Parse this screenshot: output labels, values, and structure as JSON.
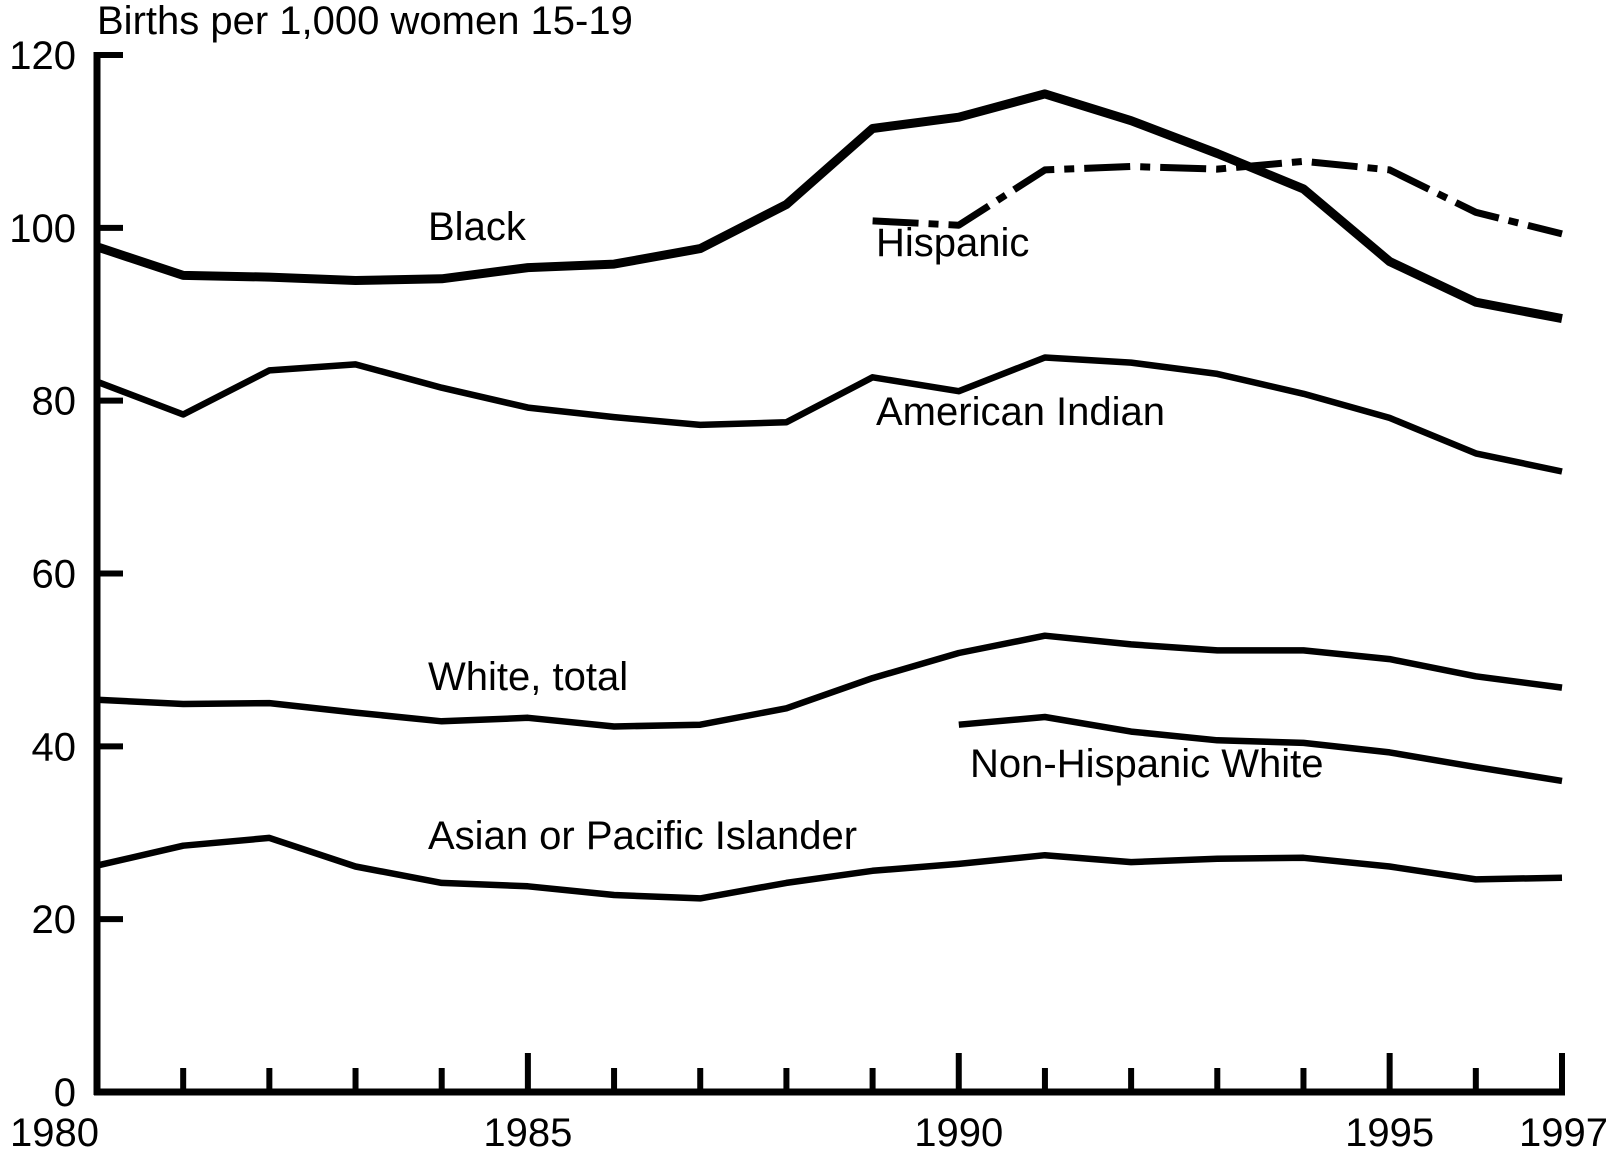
{
  "chart_data": {
    "type": "line",
    "ylabel": "Births per 1,000 women 15-19",
    "xlabel": "",
    "xlim": [
      1980,
      1997
    ],
    "ylim": [
      0,
      120
    ],
    "x_tick_labels": [
      "1980",
      "1985",
      "1990",
      "1995",
      "1997"
    ],
    "y_tick_labels": [
      "0",
      "20",
      "40",
      "60",
      "80",
      "100",
      "120"
    ],
    "grid": false,
    "legend": "none (series labeled inline)",
    "series": [
      {
        "name": "Black",
        "style": "solid-thick",
        "x": [
          1980,
          1981,
          1982,
          1983,
          1984,
          1985,
          1986,
          1987,
          1988,
          1989,
          1990,
          1991,
          1992,
          1993,
          1994,
          1995,
          1996,
          1997
        ],
        "values": [
          97.8,
          94.5,
          94.3,
          93.9,
          94.1,
          95.4,
          95.8,
          97.6,
          102.7,
          111.5,
          112.8,
          115.5,
          112.4,
          108.6,
          104.5,
          96.1,
          91.4,
          89.5
        ]
      },
      {
        "name": "Hispanic",
        "style": "dashed",
        "x": [
          1989,
          1990,
          1991,
          1992,
          1993,
          1994,
          1995,
          1996,
          1997
        ],
        "values": [
          100.8,
          100.3,
          106.7,
          107.1,
          106.8,
          107.7,
          106.7,
          101.8,
          99.3
        ]
      },
      {
        "name": "American Indian",
        "style": "solid",
        "x": [
          1980,
          1981,
          1982,
          1983,
          1984,
          1985,
          1986,
          1987,
          1988,
          1989,
          1990,
          1991,
          1992,
          1993,
          1994,
          1995,
          1996,
          1997
        ],
        "values": [
          82.2,
          78.4,
          83.5,
          84.2,
          81.5,
          79.2,
          78.1,
          77.2,
          77.5,
          82.7,
          81.1,
          85.0,
          84.4,
          83.1,
          80.8,
          78.0,
          73.9,
          71.8
        ]
      },
      {
        "name": "White, total",
        "style": "solid",
        "x": [
          1980,
          1981,
          1982,
          1983,
          1984,
          1985,
          1986,
          1987,
          1988,
          1989,
          1990,
          1991,
          1992,
          1993,
          1994,
          1995,
          1996,
          1997
        ],
        "values": [
          45.4,
          44.9,
          45.0,
          43.9,
          42.9,
          43.3,
          42.3,
          42.5,
          44.4,
          47.9,
          50.8,
          52.8,
          51.8,
          51.1,
          51.1,
          50.1,
          48.1,
          46.8
        ]
      },
      {
        "name": "Non-Hispanic White",
        "style": "solid",
        "x": [
          1990,
          1991,
          1992,
          1993,
          1994,
          1995,
          1996,
          1997
        ],
        "values": [
          42.5,
          43.4,
          41.7,
          40.7,
          40.4,
          39.3,
          37.6,
          36.0
        ]
      },
      {
        "name": "Asian or Pacific Islander",
        "style": "solid",
        "x": [
          1980,
          1981,
          1982,
          1983,
          1984,
          1985,
          1986,
          1987,
          1988,
          1989,
          1990,
          1991,
          1992,
          1993,
          1994,
          1995,
          1996,
          1997
        ],
        "values": [
          26.2,
          28.5,
          29.4,
          26.1,
          24.2,
          23.8,
          22.8,
          22.4,
          24.2,
          25.6,
          26.4,
          27.4,
          26.6,
          27.0,
          27.1,
          26.1,
          24.6,
          24.8
        ]
      }
    ]
  }
}
